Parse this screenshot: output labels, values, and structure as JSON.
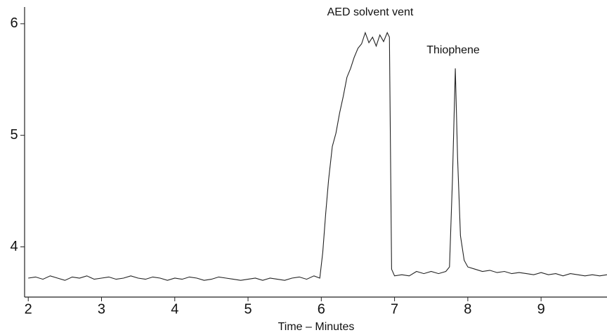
{
  "chart_data": {
    "type": "line",
    "xlabel": "Time – Minutes",
    "annotations": [
      "AED solvent vent",
      "Thiophene"
    ],
    "x": [
      2.0,
      2.1,
      2.2,
      2.3,
      2.4,
      2.5,
      2.6,
      2.7,
      2.8,
      2.9,
      3.0,
      3.1,
      3.2,
      3.3,
      3.4,
      3.5,
      3.6,
      3.7,
      3.8,
      3.9,
      4.0,
      4.1,
      4.2,
      4.3,
      4.4,
      4.5,
      4.6,
      4.7,
      4.8,
      4.9,
      5.0,
      5.1,
      5.2,
      5.3,
      5.4,
      5.5,
      5.6,
      5.7,
      5.8,
      5.9,
      5.98,
      6.02,
      6.06,
      6.1,
      6.15,
      6.2,
      6.25,
      6.3,
      6.35,
      6.4,
      6.45,
      6.5,
      6.55,
      6.6,
      6.65,
      6.7,
      6.75,
      6.8,
      6.85,
      6.9,
      6.93,
      6.96,
      7.0,
      7.1,
      7.2,
      7.3,
      7.4,
      7.5,
      7.6,
      7.7,
      7.75,
      7.79,
      7.83,
      7.86,
      7.9,
      7.95,
      8.0,
      8.1,
      8.2,
      8.3,
      8.4,
      8.5,
      8.6,
      8.7,
      8.8,
      8.9,
      9.0,
      9.1,
      9.2,
      9.3,
      9.4,
      9.5,
      9.6,
      9.7,
      9.8,
      9.9
    ],
    "series": [
      {
        "color": "#222222",
        "values": [
          3.72,
          3.73,
          3.71,
          3.74,
          3.72,
          3.7,
          3.73,
          3.72,
          3.74,
          3.71,
          3.72,
          3.73,
          3.71,
          3.72,
          3.74,
          3.72,
          3.71,
          3.73,
          3.72,
          3.7,
          3.72,
          3.71,
          3.73,
          3.72,
          3.7,
          3.71,
          3.73,
          3.72,
          3.71,
          3.7,
          3.71,
          3.72,
          3.7,
          3.72,
          3.71,
          3.7,
          3.72,
          3.73,
          3.71,
          3.74,
          3.72,
          3.95,
          4.3,
          4.6,
          4.9,
          5.02,
          5.2,
          5.35,
          5.52,
          5.6,
          5.7,
          5.78,
          5.82,
          5.92,
          5.83,
          5.88,
          5.8,
          5.9,
          5.84,
          5.92,
          5.88,
          3.8,
          3.74,
          3.75,
          3.74,
          3.78,
          3.76,
          3.78,
          3.76,
          3.78,
          3.82,
          4.6,
          5.6,
          4.8,
          4.1,
          3.88,
          3.82,
          3.8,
          3.78,
          3.79,
          3.77,
          3.78,
          3.76,
          3.77,
          3.76,
          3.75,
          3.77,
          3.75,
          3.76,
          3.74,
          3.76,
          3.75,
          3.74,
          3.75,
          3.74,
          3.75
        ]
      }
    ],
    "xlim": [
      1.95,
      9.9
    ],
    "ylim": [
      3.55,
      6.15
    ],
    "xticks": [
      2,
      3,
      4,
      5,
      6,
      7,
      8,
      9
    ],
    "yticks": [
      4,
      5,
      6
    ]
  }
}
